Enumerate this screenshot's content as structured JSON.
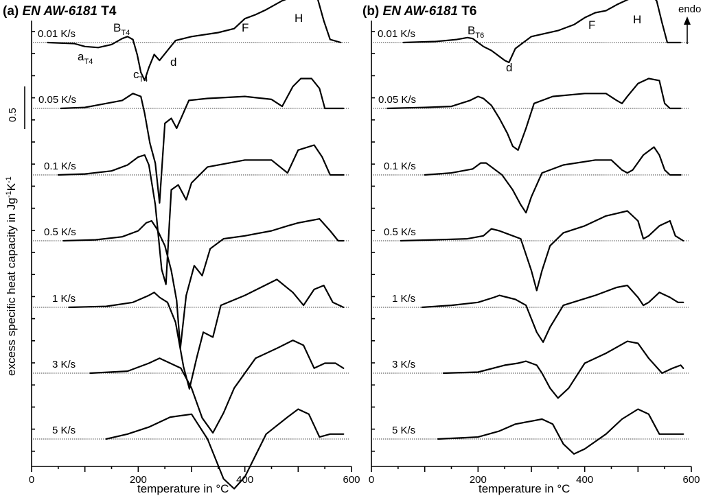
{
  "figure": {
    "ylabel": "excess specific heat capacity in Jg",
    "ylabel_exp1": "-1",
    "ylabel_mid": "K",
    "ylabel_exp2": "-1",
    "scalebar_label": "0.5",
    "endo_label": "endo"
  },
  "chart_data": [
    {
      "type": "line",
      "panel": "(a)",
      "title_prefix": "(a) ",
      "title_alloy": "EN AW-6181",
      "title_temper": " T4",
      "xlabel": "temperature in °C",
      "xlim": [
        0,
        600
      ],
      "xticks": [
        0,
        200,
        400,
        600
      ],
      "series": [
        {
          "name": "0.01 K/s",
          "x": [
            30,
            80,
            100,
            125,
            150,
            170,
            180,
            190,
            198,
            205,
            212,
            220,
            230,
            240,
            255,
            270,
            300,
            350,
            380,
            400,
            420,
            440,
            470,
            500,
            520,
            535,
            548,
            560,
            580
          ],
          "y": [
            0,
            -0.01,
            -0.04,
            -0.05,
            -0.02,
            0.04,
            0.06,
            0.03,
            -0.12,
            -0.3,
            -0.38,
            -0.25,
            -0.12,
            -0.18,
            -0.08,
            0.02,
            0.06,
            0.1,
            0.14,
            0.24,
            0.28,
            0.33,
            0.42,
            0.48,
            0.5,
            0.47,
            0.22,
            0.03,
            0
          ]
        },
        {
          "name": "0.05 K/s",
          "x": [
            55,
            100,
            140,
            170,
            190,
            205,
            212,
            222,
            232,
            240,
            250,
            262,
            272,
            282,
            295,
            330,
            400,
            450,
            470,
            490,
            505,
            525,
            540,
            550,
            560,
            585
          ],
          "y": [
            0,
            0.01,
            0.05,
            0.08,
            0.15,
            0.12,
            -0.05,
            -0.35,
            -0.55,
            -0.95,
            -0.15,
            -0.1,
            -0.2,
            -0.08,
            0.08,
            0.1,
            0.12,
            0.09,
            0.02,
            0.22,
            0.3,
            0.3,
            0.2,
            0,
            0,
            0
          ]
        },
        {
          "name": "0.1 K/s",
          "x": [
            50,
            100,
            150,
            180,
            200,
            212,
            220,
            232,
            244,
            252,
            262,
            275,
            290,
            300,
            330,
            400,
            450,
            480,
            500,
            530,
            545,
            560,
            585
          ],
          "y": [
            0,
            0.01,
            0.04,
            0.1,
            0.18,
            0.2,
            0.1,
            -0.3,
            -0.95,
            -1.1,
            -0.15,
            -0.1,
            -0.25,
            -0.08,
            0.08,
            0.15,
            0.15,
            0.02,
            0.25,
            0.3,
            0.18,
            0,
            0
          ]
        },
        {
          "name": "0.5 K/s",
          "x": [
            60,
            120,
            170,
            200,
            215,
            225,
            235,
            250,
            262,
            272,
            279,
            290,
            305,
            320,
            335,
            360,
            400,
            450,
            480,
            500,
            520,
            540,
            560,
            575,
            585
          ],
          "y": [
            0,
            0.01,
            0.04,
            0.1,
            0.18,
            0.2,
            0.12,
            -0.05,
            -0.3,
            -0.6,
            -1.08,
            -0.55,
            -0.25,
            -0.35,
            -0.08,
            0.02,
            0.05,
            0.1,
            0.15,
            0.18,
            0.2,
            0.22,
            0.1,
            0,
            0
          ]
        },
        {
          "name": "1 K/s",
          "x": [
            70,
            140,
            190,
            220,
            230,
            240,
            255,
            270,
            285,
            296,
            310,
            322,
            340,
            355,
            400,
            430,
            460,
            490,
            510,
            530,
            548,
            565,
            585
          ],
          "y": [
            0,
            0.01,
            0.05,
            0.12,
            0.15,
            0.1,
            0.05,
            -0.15,
            -0.6,
            -0.82,
            -0.5,
            -0.25,
            -0.3,
            0.02,
            0.12,
            0.2,
            0.28,
            0.15,
            0.02,
            0.18,
            0.22,
            0.05,
            0
          ]
        },
        {
          "name": "3 K/s",
          "x": [
            110,
            180,
            220,
            240,
            260,
            280,
            300,
            320,
            340,
            360,
            380,
            420,
            460,
            490,
            510,
            530,
            550,
            570,
            585
          ],
          "y": [
            0,
            0.02,
            0.1,
            0.15,
            0.1,
            0.05,
            -0.15,
            -0.45,
            -0.6,
            -0.4,
            -0.15,
            0.15,
            0.25,
            0.33,
            0.28,
            0.05,
            0.1,
            0.1,
            0.05
          ]
        },
        {
          "name": "5 K/s",
          "x": [
            140,
            180,
            220,
            260,
            300,
            330,
            360,
            380,
            400,
            440,
            480,
            500,
            520,
            540,
            560,
            585
          ],
          "y": [
            0,
            0.05,
            0.12,
            0.22,
            0.25,
            0.0,
            -0.4,
            -0.5,
            -0.38,
            0.05,
            0.22,
            0.3,
            0.25,
            0.02,
            0.05,
            0.05
          ]
        }
      ],
      "annotations": [
        {
          "text": "B",
          "sub": "T4"
        },
        {
          "text": "a",
          "sub": "T4"
        },
        {
          "text": "c",
          "sub": "T4"
        },
        {
          "text": "d",
          "sub": ""
        },
        {
          "text": "F",
          "sub": ""
        },
        {
          "text": "H",
          "sub": ""
        }
      ]
    },
    {
      "type": "line",
      "panel": "(b)",
      "title_prefix": "(b) ",
      "title_alloy": "EN AW-6181",
      "title_temper": " T6",
      "xlabel": "temperature in °C",
      "xlim": [
        0,
        600
      ],
      "xticks": [
        0,
        200,
        400,
        600
      ],
      "series": [
        {
          "name": "0.01 K/s",
          "x": [
            60,
            120,
            160,
            180,
            190,
            200,
            210,
            225,
            240,
            250,
            258,
            270,
            300,
            350,
            380,
            400,
            420,
            440,
            460,
            480,
            500,
            520,
            535,
            545,
            555,
            580
          ],
          "y": [
            0,
            0.01,
            0.03,
            0.05,
            0.04,
            0.0,
            -0.04,
            -0.08,
            -0.14,
            -0.18,
            -0.2,
            -0.06,
            0.06,
            0.12,
            0.18,
            0.25,
            0.3,
            0.32,
            0.38,
            0.43,
            0.47,
            0.5,
            0.42,
            0.2,
            0,
            0
          ]
        },
        {
          "name": "0.05 K/s",
          "x": [
            30,
            100,
            150,
            185,
            200,
            210,
            225,
            240,
            255,
            265,
            275,
            290,
            305,
            340,
            400,
            440,
            460,
            470,
            480,
            500,
            520,
            540,
            550,
            560,
            580
          ],
          "y": [
            0,
            0.01,
            0.02,
            0.08,
            0.12,
            0.1,
            0.03,
            -0.1,
            -0.25,
            -0.38,
            -0.42,
            -0.2,
            0.05,
            0.12,
            0.15,
            0.15,
            0.08,
            0.05,
            0.12,
            0.25,
            0.3,
            0.28,
            0.05,
            0,
            0
          ]
        },
        {
          "name": "0.1 K/s",
          "x": [
            100,
            150,
            190,
            205,
            215,
            225,
            245,
            265,
            280,
            290,
            300,
            320,
            360,
            420,
            450,
            470,
            480,
            490,
            510,
            530,
            540,
            550,
            560,
            580
          ],
          "y": [
            0,
            0.02,
            0.06,
            0.12,
            0.12,
            0.08,
            0.0,
            -0.15,
            -0.3,
            -0.38,
            -0.22,
            0.02,
            0.1,
            0.15,
            0.15,
            0.05,
            0.02,
            0.05,
            0.2,
            0.28,
            0.2,
            0.05,
            0,
            0
          ]
        },
        {
          "name": "0.5 K/s",
          "x": [
            55,
            120,
            180,
            210,
            225,
            240,
            260,
            280,
            300,
            310,
            320,
            335,
            360,
            400,
            440,
            480,
            500,
            510,
            520,
            540,
            560,
            570,
            585
          ],
          "y": [
            0,
            0.01,
            0.02,
            0.05,
            0.12,
            0.1,
            0.06,
            0.02,
            -0.3,
            -0.5,
            -0.3,
            -0.05,
            0.08,
            0.15,
            0.25,
            0.3,
            0.2,
            0.02,
            0.05,
            0.15,
            0.2,
            0.05,
            0
          ]
        },
        {
          "name": "1 K/s",
          "x": [
            95,
            150,
            200,
            230,
            240,
            255,
            270,
            290,
            310,
            322,
            335,
            360,
            420,
            460,
            480,
            500,
            510,
            520,
            540,
            560,
            575,
            585
          ],
          "y": [
            0,
            0.02,
            0.05,
            0.1,
            0.12,
            0.1,
            0.08,
            0.02,
            -0.25,
            -0.35,
            -0.2,
            0.02,
            0.12,
            0.2,
            0.22,
            0.1,
            0.02,
            0.05,
            0.15,
            0.1,
            0.05,
            0.05
          ]
        },
        {
          "name": "3 K/s",
          "x": [
            135,
            200,
            250,
            275,
            290,
            310,
            320,
            335,
            350,
            370,
            400,
            440,
            480,
            500,
            520,
            545,
            565,
            580,
            585
          ],
          "y": [
            0,
            0.01,
            0.08,
            0.1,
            0.12,
            0.08,
            0.0,
            -0.15,
            -0.25,
            -0.15,
            0.1,
            0.2,
            0.32,
            0.3,
            0.15,
            0.0,
            0.05,
            0.08,
            0.05
          ]
        },
        {
          "name": "5 K/s",
          "x": [
            125,
            200,
            240,
            270,
            300,
            320,
            340,
            360,
            380,
            400,
            440,
            470,
            500,
            520,
            540,
            560,
            585
          ],
          "y": [
            0,
            0.02,
            0.08,
            0.15,
            0.18,
            0.2,
            0.15,
            -0.05,
            -0.15,
            -0.1,
            0.05,
            0.2,
            0.3,
            0.25,
            0.05,
            0.05,
            0.05
          ]
        }
      ],
      "annotations": [
        {
          "text": "B",
          "sub": "T6"
        },
        {
          "text": "d",
          "sub": ""
        },
        {
          "text": "F",
          "sub": ""
        },
        {
          "text": "H",
          "sub": ""
        }
      ]
    }
  ]
}
